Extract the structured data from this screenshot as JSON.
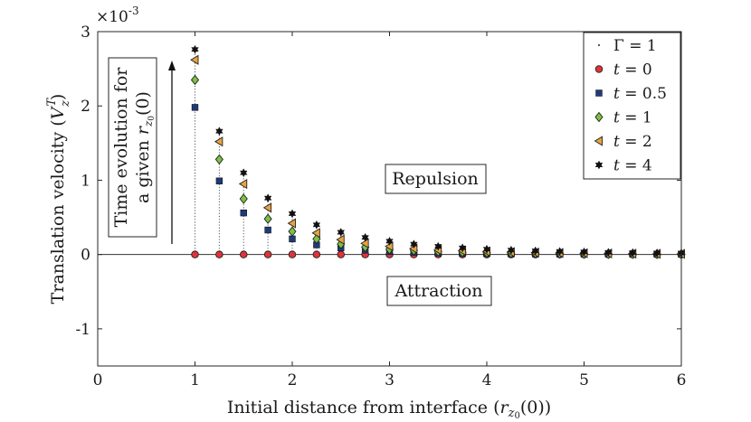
{
  "chart_data": {
    "type": "scatter",
    "xlabel": {
      "text": "Initial distance from interface (",
      "sym": "r",
      "sub": "z",
      "subsub": "0",
      "tail": "(0))"
    },
    "ylabel": {
      "text": "Translation velocity (",
      "sym": "V",
      "sup": "T",
      "sub": "z",
      "tail": ")"
    },
    "y_multiplier": {
      "base": "×10",
      "exp": "-3"
    },
    "xlim": [
      0,
      6
    ],
    "ylim": [
      -1.5,
      3
    ],
    "xticks": [
      "0",
      "1",
      "2",
      "3",
      "4",
      "5",
      "6"
    ],
    "yticks": [
      "-1",
      "0",
      "1",
      "2",
      "3"
    ],
    "x": [
      1,
      1.25,
      1.5,
      1.75,
      2,
      2.25,
      2.5,
      2.75,
      3,
      3.25,
      3.5,
      3.75,
      4,
      4.25,
      4.5,
      4.75,
      5,
      5.25,
      5.5,
      5.75,
      6
    ],
    "series": [
      {
        "name": "t = 0",
        "var": "t",
        "val": "0",
        "marker": "circle",
        "color": "#e0333a",
        "values": [
          0,
          0,
          0,
          0,
          0,
          0,
          0,
          0,
          0,
          0,
          0,
          0,
          0,
          0,
          0,
          0,
          0,
          0,
          0,
          0,
          0
        ]
      },
      {
        "name": "t = 0.5",
        "var": "t",
        "val": "0.5",
        "marker": "square",
        "color": "#1f3a7a",
        "values": [
          1.98,
          0.99,
          0.56,
          0.33,
          0.21,
          0.13,
          0.09,
          0.06,
          0.04,
          0.03,
          0.02,
          0.015,
          0.012,
          0.009,
          0.007,
          0.006,
          0.005,
          0.004,
          0.003,
          0.003,
          0.002
        ]
      },
      {
        "name": "t = 1",
        "var": "t",
        "val": "1",
        "marker": "diamond",
        "color": "#7cc242",
        "values": [
          2.35,
          1.28,
          0.75,
          0.48,
          0.31,
          0.21,
          0.14,
          0.1,
          0.07,
          0.055,
          0.04,
          0.03,
          0.024,
          0.019,
          0.015,
          0.012,
          0.01,
          0.008,
          0.007,
          0.006,
          0.005
        ]
      },
      {
        "name": "t = 2",
        "var": "t",
        "val": "2",
        "marker": "triangle-left",
        "color": "#e9a440",
        "values": [
          2.62,
          1.52,
          0.95,
          0.63,
          0.42,
          0.29,
          0.2,
          0.15,
          0.11,
          0.08,
          0.06,
          0.05,
          0.04,
          0.032,
          0.026,
          0.021,
          0.018,
          0.015,
          0.012,
          0.01,
          0.009
        ]
      },
      {
        "name": "t = 4",
        "var": "t",
        "val": "4",
        "marker": "hexagram",
        "color": "#111111",
        "values": [
          2.76,
          1.66,
          1.1,
          0.76,
          0.55,
          0.4,
          0.3,
          0.23,
          0.18,
          0.14,
          0.11,
          0.09,
          0.072,
          0.06,
          0.05,
          0.042,
          0.036,
          0.03,
          0.026,
          0.022,
          0.02
        ]
      }
    ],
    "gamma_entry": {
      "sym": "Γ",
      "val": "1",
      "marker": "point"
    },
    "legend_position": "top-right",
    "annotations": {
      "repulsion": "Repulsion",
      "attraction": "Attraction",
      "time_line1": "Time evolution for",
      "time_line2_prefix": "a given ",
      "time_sym": "r",
      "time_sub": "z",
      "time_subsub": "0",
      "time_tail": "(0)"
    },
    "grid": false
  }
}
